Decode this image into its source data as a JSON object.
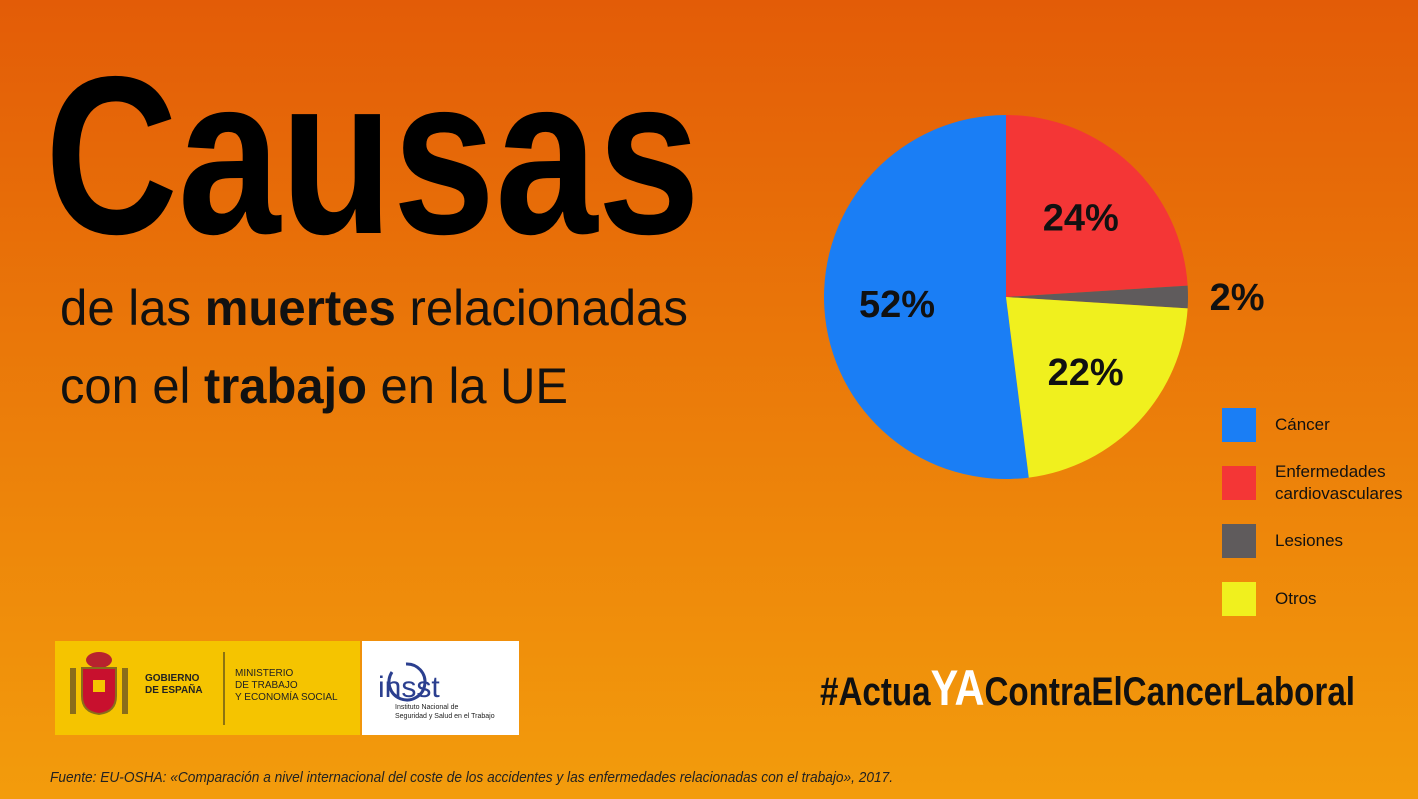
{
  "title": "Causas",
  "subtitle": [
    [
      "de las ",
      "muertes",
      " relacionadas"
    ],
    [
      "con el ",
      "trabajo",
      " en la UE"
    ]
  ],
  "chart_data": {
    "type": "pie",
    "categories": [
      "Cáncer",
      "Enfermedades cardiovasculares",
      "Lesiones",
      "Otros"
    ],
    "values": [
      52,
      24,
      2,
      22
    ],
    "value_labels": [
      "52%",
      "24%",
      "2%",
      "22%"
    ],
    "colors": [
      "#1a7ef5",
      "#f43636",
      "#5f5b5c",
      "#f0f01e"
    ],
    "legend": "right"
  },
  "logos": {
    "gobierno": [
      "GOBIERNO",
      "DE ESPAÑA"
    ],
    "ministerio": [
      "MINISTERIO",
      "DE TRABAJO",
      "Y ECONOMÍA SOCIAL"
    ],
    "insst": "insst",
    "insst_name": [
      "Instituto Nacional de",
      "Seguridad y Salud en el Trabajo"
    ]
  },
  "hashtag": [
    "#Actua",
    "YA",
    "ContraElCancerLaboral"
  ],
  "source": "Fuente: EU-OSHA: «Comparación a nivel internacional del coste de los accidentes y las enfermedades relacionadas con el trabajo», 2017."
}
